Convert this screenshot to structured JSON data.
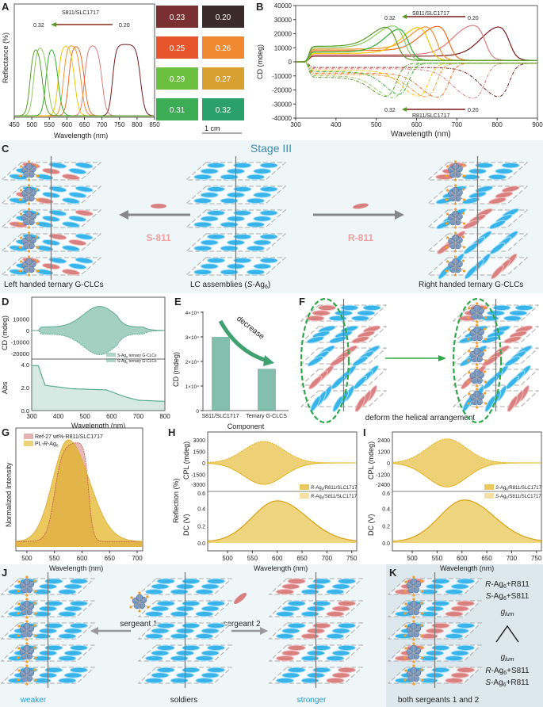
{
  "panels": {
    "A": {
      "label": "A",
      "xlabel": "Wavelength (nm)",
      "ylabel": "Reflectance (%)",
      "series_label": "S811/SLC1717",
      "arrow_from": "0.20",
      "arrow_to": "0.32",
      "xticks": [
        "450",
        "500",
        "550",
        "600",
        "650",
        "700",
        "750",
        "800",
        "850"
      ],
      "tiles": [
        {
          "value": "0.23",
          "color": "#7a3030"
        },
        {
          "value": "0.20",
          "color": "#3a2a2a"
        },
        {
          "value": "0.25",
          "color": "#e8552a"
        },
        {
          "value": "0.26",
          "color": "#ef8a30"
        },
        {
          "value": "0.29",
          "color": "#6cc040"
        },
        {
          "value": "0.27",
          "color": "#d8a030"
        },
        {
          "value": "0.31",
          "color": "#3cac55"
        },
        {
          "value": "0.32",
          "color": "#2aa06a"
        }
      ],
      "scale_bar": "1 cm"
    },
    "B": {
      "label": "B",
      "xlabel": "Wavelength (nm)",
      "ylabel": "CD (mdeg)",
      "top_label": "S811/SLC1717",
      "bottom_label": "R811/SLC1717",
      "arrow_from": "0.20",
      "arrow_to": "0.32",
      "xticks": [
        "300",
        "400",
        "500",
        "600",
        "700",
        "800",
        "900"
      ],
      "yticks": [
        "40000",
        "30000",
        "20000",
        "10000",
        "0",
        "-10000",
        "-20000",
        "-30000",
        "-40000"
      ]
    },
    "C": {
      "label": "C",
      "title": "Stage III",
      "left_dopant": "S-811",
      "right_dopant": "R-811",
      "caption_left": "Left handed ternary G-CLCs",
      "caption_center": {
        "pre": "LC assemblies (",
        "italic": "S",
        "main": "-Ag",
        "sub": "6",
        "post": ")"
      },
      "caption_right": "Right handed ternary G-CLCs"
    },
    "D": {
      "label": "D",
      "xlabel": "Wavelength (nm)",
      "ylabel_top": "CD (mdeg)",
      "ylabel_bottom": "Abs",
      "yticks_top": [
        "10000",
        "0",
        "-10000",
        "-20000"
      ],
      "yticks_bottom": [
        "4.0",
        "2.0",
        "0.0"
      ],
      "xticks": [
        "300",
        "400",
        "500",
        "600",
        "700",
        "800"
      ],
      "legend": [
        {
          "main": "S-Ag",
          "sub": "6",
          "post": " ternary G-CLCs"
        },
        {
          "main": "S-Ag",
          "sub": "6",
          "post": " ternary G-CLCs"
        }
      ]
    },
    "E": {
      "label": "E",
      "xlabel": "Component",
      "ylabel": "CD (mdeg)",
      "annotation": "decrease",
      "yticks": [
        "4×10⁴",
        "3×10⁴",
        "2×10⁴",
        "1×10⁴",
        "0"
      ]
    },
    "F": {
      "label": "F",
      "caption": "deform the helical arrangement"
    },
    "G": {
      "label": "G",
      "xlabel": "Wavelength (nm)",
      "ylabel": "Normalized Intensity",
      "xticks": [
        "500",
        "550",
        "600",
        "650",
        "700"
      ],
      "legend": [
        {
          "pre": "Ref-27 wt%-R811/SLC1717"
        },
        {
          "pre": "PL-",
          "italic": "R",
          "main": "-Ag",
          "sub": "6"
        }
      ]
    },
    "H": {
      "label": "H",
      "xlabel": "Wavelength (nm)",
      "ylabel_top": "CPL (mdeg)",
      "ylabel_mid": "Reflection (%)",
      "ylabel_bottom": "DC (V)",
      "yticks_top": [
        "3000",
        "1500",
        "0",
        "-1500",
        "-3000"
      ],
      "yticks_bottom": [
        "0.6",
        "0.4",
        "0.2",
        "0.0"
      ],
      "xticks": [
        "500",
        "550",
        "600",
        "650",
        "700",
        "750"
      ],
      "legend": [
        {
          "italic": "R",
          "main": "-Ag",
          "sub": "6",
          "post": "/R811/SLC1717"
        },
        {
          "italic": "R",
          "main": "-Ag",
          "sub": "6",
          "post": "/S811/SLC1717"
        }
      ]
    },
    "I": {
      "label": "I",
      "xlabel": "Wavelength (nm)",
      "ylabel_top": "CPL (mdeg)",
      "ylabel_bottom": "DC (V)",
      "yticks_top": [
        "2400",
        "1200",
        "0",
        "-1200",
        "-2400"
      ],
      "yticks_bottom": [
        "0.6",
        "0.4",
        "0.2",
        "0.0"
      ],
      "xticks": [
        "500",
        "550",
        "600",
        "650",
        "700",
        "750"
      ],
      "legend": [
        {
          "italic": "S",
          "main": "-Ag",
          "sub": "6",
          "post": "/R811/SLC1717"
        },
        {
          "italic": "S",
          "main": "-Ag",
          "sub": "6",
          "post": "/S811/SLC1717"
        }
      ]
    },
    "J": {
      "label": "J",
      "sergeant1": "sergeant 1",
      "sergeant2": "sergeant 2",
      "weaker": "weaker",
      "soldiers": "soldiers",
      "stronger": "stronger"
    },
    "K": {
      "label": "K",
      "caption": "both sergeants 1 and 2",
      "top": [
        {
          "italic": "R",
          "main": "-Ag",
          "sub": "6",
          "post": "+R811"
        },
        {
          "italic": "S",
          "main": "-Ag",
          "sub": "6",
          "post": "+S811"
        }
      ],
      "glum": {
        "main": "g",
        "sub": "lum"
      },
      "bottom": [
        {
          "italic": "R",
          "main": "-Ag",
          "sub": "6",
          "post": "+S811"
        },
        {
          "italic": "S",
          "main": "-Ag",
          "sub": "6",
          "post": "+R811"
        }
      ]
    }
  },
  "colors": {
    "lc_blue": "#38b4ea",
    "dopant_pink": "#d98080",
    "teal": "#5aaa90",
    "gold": "#e3b21a",
    "stage_bg": "#eef6f8",
    "k_bg": "#dde8ee",
    "accent_blue_text": "#1e9ad6",
    "green_arrow": "#2fa84a"
  },
  "chart_data": [
    {
      "panel": "A",
      "type": "line",
      "xlabel": "Wavelength (nm)",
      "ylabel": "Reflectance (%)",
      "xlim": [
        450,
        850
      ],
      "series": [
        {
          "name": "0.20",
          "color": "#7a1a1a",
          "band_nm": [
            730,
            810
          ]
        },
        {
          "name": "0.23",
          "color": "#e07a7a",
          "band_nm": [
            650,
            700
          ]
        },
        {
          "name": "0.25",
          "color": "#ee6a22",
          "band_nm": [
            605,
            650
          ]
        },
        {
          "name": "0.26",
          "color": "#f29030",
          "band_nm": [
            590,
            640
          ]
        },
        {
          "name": "0.27",
          "color": "#f5c400",
          "band_nm": [
            575,
            622
          ]
        },
        {
          "name": "0.29",
          "color": "#2db02d",
          "band_nm": [
            540,
            575
          ]
        },
        {
          "name": "0.31",
          "color": "#8cc860",
          "band_nm": [
            505,
            545
          ]
        },
        {
          "name": "0.32",
          "color": "#5a9a2a",
          "band_nm": [
            495,
            530
          ]
        }
      ]
    },
    {
      "panel": "B",
      "type": "line",
      "xlabel": "Wavelength (nm)",
      "ylabel": "CD (mdeg)",
      "xlim": [
        300,
        900
      ],
      "ylim": [
        -40000,
        40000
      ],
      "peak_cd": 28000,
      "series": [
        {
          "name": "0.20",
          "color": "#7a1a1a",
          "band_nm": [
            760,
            830
          ],
          "base": 3000
        },
        {
          "name": "0.23",
          "color": "#e07a7a",
          "band_nm": [
            690,
            770
          ],
          "base": 4000
        },
        {
          "name": "0.25",
          "color": "#ee6a22",
          "band_nm": [
            610,
            680
          ],
          "base": 7000
        },
        {
          "name": "0.26",
          "color": "#f29030",
          "band_nm": [
            585,
            650
          ],
          "base": 8000
        },
        {
          "name": "0.27",
          "color": "#f5c400",
          "band_nm": [
            565,
            630
          ],
          "base": 5000
        },
        {
          "name": "0.29",
          "color": "#2db02d",
          "band_nm": [
            525,
            580
          ],
          "base": 6000
        },
        {
          "name": "0.31",
          "color": "#8cc860",
          "band_nm": [
            500,
            570
          ],
          "base": 9000
        },
        {
          "name": "0.32",
          "color": "#5a9a2a",
          "band_nm": [
            490,
            550
          ],
          "base": 10000
        }
      ]
    },
    {
      "panel": "D",
      "type": "area",
      "xlim": [
        300,
        800
      ],
      "cd_peak_nm": 555,
      "cd_peak_mdeg": 21000,
      "abs_values": [
        [
          300,
          3.9
        ],
        [
          325,
          3.9
        ],
        [
          350,
          2.2
        ],
        [
          450,
          1.9
        ],
        [
          580,
          1.8
        ],
        [
          650,
          1.2
        ],
        [
          700,
          0.9
        ],
        [
          800,
          0.8
        ]
      ]
    },
    {
      "panel": "E",
      "type": "bar",
      "categories": [
        "S811/SLC1717",
        "Ternary G-CLCS"
      ],
      "values": [
        30000,
        17000
      ],
      "ylim": [
        0,
        40000
      ]
    },
    {
      "panel": "G",
      "type": "area",
      "xlim": [
        470,
        710
      ],
      "series": [
        {
          "name": "Ref-27 wt%-R811/SLC1717",
          "band_nm": [
            545,
            620
          ]
        },
        {
          "name": "PL-R-Ag6",
          "peak_nm": 575
        }
      ]
    },
    {
      "panel": "H",
      "type": "area",
      "cpl_peak_nm": 573,
      "cpl_amp_mdeg": 2800,
      "dc_peak_nm": 600,
      "dc_peak_v": 0.49
    },
    {
      "panel": "I",
      "type": "area",
      "cpl_peak_nm": 570,
      "cpl_amp_mdeg": 2500,
      "dc_peak_nm": 605,
      "dc_peak_v": 0.5
    }
  ]
}
